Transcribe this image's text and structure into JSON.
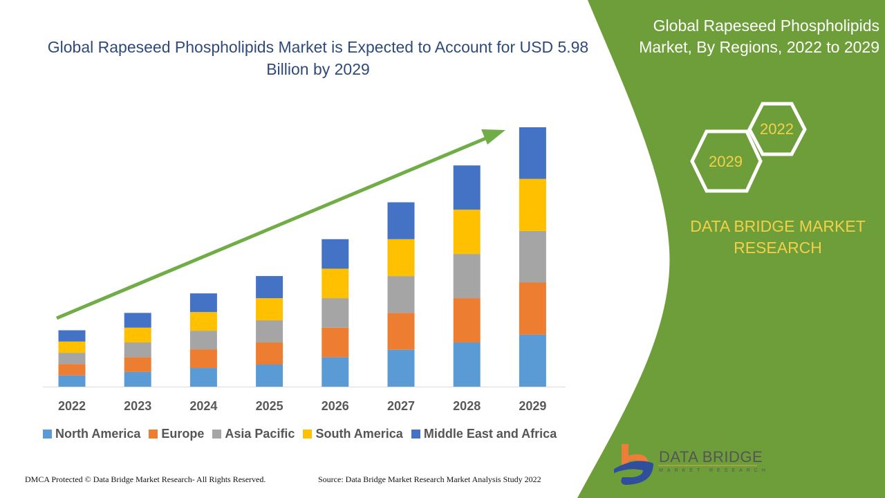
{
  "title": "Global Rapeseed Phospholipids Market is Expected to Account for USD 5.98 Billion by 2029",
  "side_panel": {
    "title": "Global Rapeseed Phospholipids Market, By Regions, 2022 to 2029",
    "hex_labels": [
      "2022",
      "2029"
    ],
    "brand": "DATA BRIDGE MARKET RESEARCH",
    "logo_text": "DATA BRIDGE",
    "logo_subtext": "MARKET RESEARCH",
    "color": "#6e9e3a"
  },
  "footer": {
    "left": "DMCA Protected © Data Bridge Market Research- All Rights Reserved.",
    "right": "Source: Data Bridge Market Research Market Analysis Study 2022"
  },
  "chart_data": {
    "type": "bar",
    "stacked": true,
    "categories": [
      "2022",
      "2023",
      "2024",
      "2025",
      "2026",
      "2027",
      "2028",
      "2029"
    ],
    "series": [
      {
        "name": "North America",
        "color": "#5b9bd5",
        "values": [
          0.26,
          0.34,
          0.43,
          0.51,
          0.68,
          0.85,
          1.02,
          1.2
        ]
      },
      {
        "name": "Europe",
        "color": "#ed7d31",
        "values": [
          0.26,
          0.34,
          0.43,
          0.51,
          0.68,
          0.85,
          1.02,
          1.2
        ]
      },
      {
        "name": "Asia Pacific",
        "color": "#a5a5a5",
        "values": [
          0.26,
          0.34,
          0.43,
          0.51,
          0.68,
          0.85,
          1.02,
          1.19
        ]
      },
      {
        "name": "South America",
        "color": "#ffc000",
        "values": [
          0.26,
          0.34,
          0.43,
          0.51,
          0.68,
          0.85,
          1.02,
          1.2
        ]
      },
      {
        "name": "Middle East and Africa",
        "color": "#4472c4",
        "values": [
          0.26,
          0.34,
          0.43,
          0.51,
          0.68,
          0.85,
          1.02,
          1.19
        ]
      }
    ],
    "ylim": [
      0,
      6
    ],
    "grid": false,
    "legend": "bottom",
    "trend_arrow_color": "#70ad47"
  }
}
